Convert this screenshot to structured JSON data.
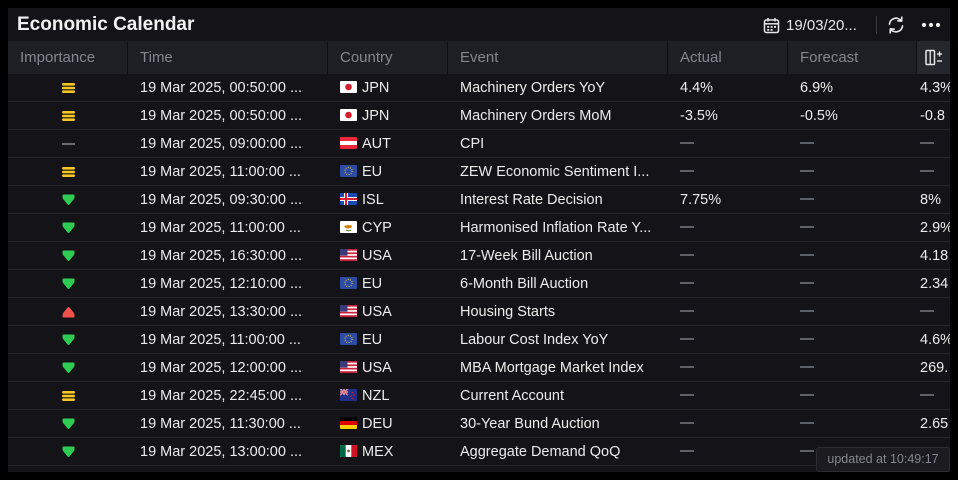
{
  "header": {
    "title": "Economic Calendar",
    "date": "19/03/20..."
  },
  "columns": [
    "Importance",
    "Time",
    "Country",
    "Event",
    "Actual",
    "Forecast"
  ],
  "colors": {
    "low": "#ffffff",
    "medium": "#f3c625",
    "high_positive": "#2ecc55",
    "high_negative": "#f0524a",
    "dash": "#5e6068"
  },
  "rows": [
    {
      "importance": "medium",
      "time": "19 Mar 2025, 00:50:00 ...",
      "flag": "JPN",
      "country": "JPN",
      "event": "Machinery Orders YoY",
      "actual": "4.4%",
      "forecast": "6.9%",
      "previous": "4.3%"
    },
    {
      "importance": "medium",
      "time": "19 Mar 2025, 00:50:00 ...",
      "flag": "JPN",
      "country": "JPN",
      "event": "Machinery Orders MoM",
      "actual": "-3.5%",
      "forecast": "-0.5%",
      "previous": "-0.8"
    },
    {
      "importance": "low",
      "time": "19 Mar 2025, 09:00:00 ...",
      "flag": "AUT",
      "country": "AUT",
      "event": "CPI",
      "actual": "",
      "forecast": "",
      "previous": ""
    },
    {
      "importance": "medium",
      "time": "19 Mar 2025, 11:00:00 ...",
      "flag": "EU",
      "country": "EU",
      "event": "ZEW Economic Sentiment I...",
      "actual": "",
      "forecast": "",
      "previous": ""
    },
    {
      "importance": "high_positive",
      "time": "19 Mar 2025, 09:30:00 ...",
      "flag": "ISL",
      "country": "ISL",
      "event": "Interest Rate Decision",
      "actual": "7.75%",
      "forecast": "",
      "previous": "8%"
    },
    {
      "importance": "high_positive",
      "time": "19 Mar 2025, 11:00:00 ...",
      "flag": "CYP",
      "country": "CYP",
      "event": "Harmonised Inflation Rate Y...",
      "actual": "",
      "forecast": "",
      "previous": "2.9%"
    },
    {
      "importance": "high_positive",
      "time": "19 Mar 2025, 16:30:00 ...",
      "flag": "USA",
      "country": "USA",
      "event": "17-Week Bill Auction",
      "actual": "",
      "forecast": "",
      "previous": "4.18"
    },
    {
      "importance": "high_positive",
      "time": "19 Mar 2025, 12:10:00 ...",
      "flag": "EU",
      "country": "EU",
      "event": "6-Month Bill Auction",
      "actual": "",
      "forecast": "",
      "previous": "2.34"
    },
    {
      "importance": "high_negative",
      "time": "19 Mar 2025, 13:30:00 ...",
      "flag": "USA",
      "country": "USA",
      "event": "Housing Starts",
      "actual": "",
      "forecast": "",
      "previous": ""
    },
    {
      "importance": "high_positive",
      "time": "19 Mar 2025, 11:00:00 ...",
      "flag": "EU",
      "country": "EU",
      "event": "Labour Cost Index YoY",
      "actual": "",
      "forecast": "",
      "previous": "4.6%"
    },
    {
      "importance": "high_positive",
      "time": "19 Mar 2025, 12:00:00 ...",
      "flag": "USA",
      "country": "USA",
      "event": "MBA Mortgage Market Index",
      "actual": "",
      "forecast": "",
      "previous": "269."
    },
    {
      "importance": "medium",
      "time": "19 Mar 2025, 22:45:00 ...",
      "flag": "NZL",
      "country": "NZL",
      "event": "Current Account",
      "actual": "",
      "forecast": "",
      "previous": ""
    },
    {
      "importance": "high_positive",
      "time": "19 Mar 2025, 11:30:00 ...",
      "flag": "DEU",
      "country": "DEU",
      "event": "30-Year Bund Auction",
      "actual": "",
      "forecast": "",
      "previous": "2.65"
    },
    {
      "importance": "high_positive",
      "time": "19 Mar 2025, 13:00:00 ...",
      "flag": "MEX",
      "country": "MEX",
      "event": "Aggregate Demand QoQ",
      "actual": "",
      "forecast": "",
      "previous": ""
    }
  ],
  "updated": "updated at 10:49:17"
}
